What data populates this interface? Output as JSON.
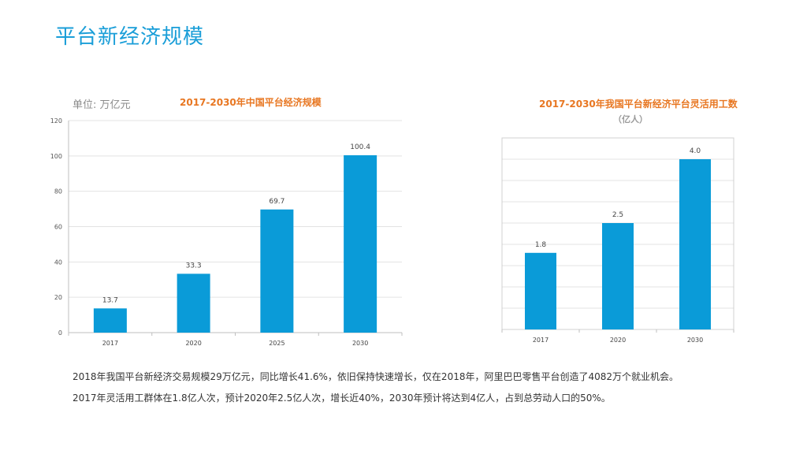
{
  "page": {
    "title": "平台新经济规模"
  },
  "chart_data": [
    {
      "type": "bar",
      "title": "2017-2030年中国平台经济规模",
      "unit_label": "单位: 万亿元",
      "categories": [
        "2017",
        "2020",
        "2025",
        "2030"
      ],
      "values": [
        13.7,
        33.3,
        69.7,
        100.4
      ],
      "value_labels": [
        "13.7",
        "33.3",
        "69.7",
        "100.4"
      ],
      "ylim": [
        0,
        120
      ],
      "yticks": [
        "0",
        "20",
        "40",
        "60",
        "80",
        "100",
        "120"
      ],
      "grid": true,
      "color": "#0a9bd8"
    },
    {
      "type": "bar",
      "title": "2017-2030年我国平台新经济平台灵活用工数",
      "subtitle": "（亿人）",
      "categories": [
        "2017",
        "2020",
        "2030"
      ],
      "values": [
        1.8,
        2.5,
        4.0
      ],
      "value_labels": [
        "1.8",
        "2.5",
        "4.0"
      ],
      "ylim": [
        0,
        4.5
      ],
      "grid": true,
      "color": "#0a9bd8"
    }
  ],
  "captions": [
    "2018年我国平台新经济交易规模29万亿元，同比增长41.6%，依旧保持快速增长，仅在2018年，阿里巴巴零售平台创造了4082万个就业机会。",
    "2017年灵活用工群体在1.8亿人次，预计2020年2.5亿人次，增长近40%，2030年预计将达到4亿人，占到总劳动人口的50%。"
  ]
}
